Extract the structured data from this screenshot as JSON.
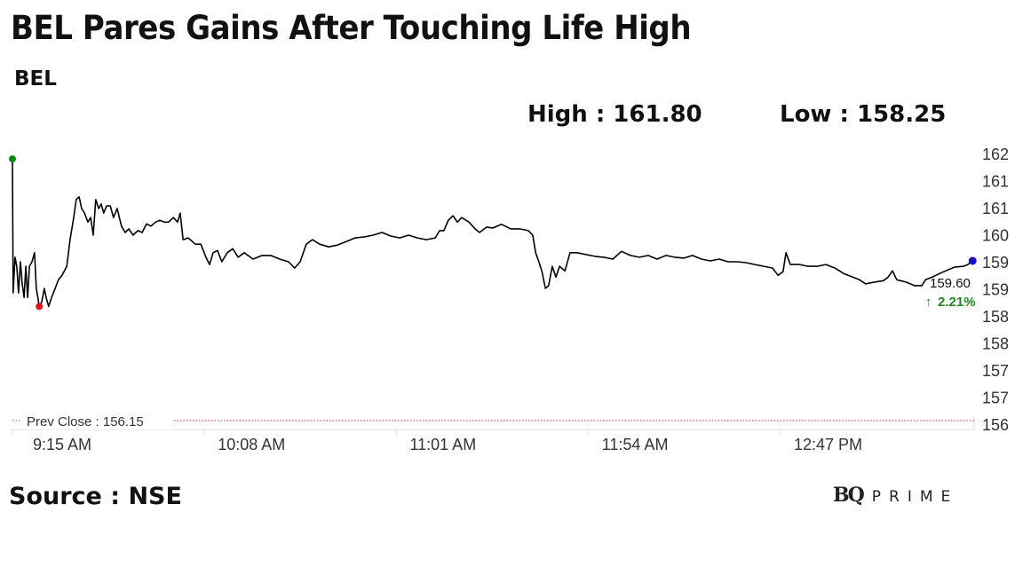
{
  "title": "BEL Pares Gains After Touching Life High",
  "ticker": "BEL",
  "high_label": "High : 161.80",
  "low_label": "Low : 158.25",
  "source": "Source : NSE",
  "logo": {
    "bq": "BQ",
    "prime": "PRIME"
  },
  "colors": {
    "line": "#000000",
    "high_dot": "#0a8a0a",
    "low_dot": "#ee1111",
    "last_dot": "#1111cc",
    "change": "#1a8a1a",
    "prev_close": "#cc3333"
  },
  "chart_data": {
    "type": "line",
    "title": "BEL",
    "xlabel": "",
    "ylabel": "",
    "x_unit": "minutes since 9:15 AM",
    "ylim": [
      156,
      162
    ],
    "y_tick_labels": [
      "162",
      "161",
      "161",
      "160",
      "159",
      "159",
      "158",
      "158",
      "157",
      "157",
      "156"
    ],
    "x_tick_labels": [
      "9:15 AM",
      "10:08 AM",
      "11:01 AM",
      "11:54 AM",
      "12:47 PM"
    ],
    "x_tick_minutes": [
      0,
      53,
      106,
      159,
      212
    ],
    "prev_close": {
      "label": "Prev Close : 156.15",
      "value": 156.15
    },
    "last": {
      "value_label": "159.60",
      "change_label": "2.21%",
      "change_icon": "arrow-up-icon"
    },
    "grid": false,
    "series": [
      {
        "name": "BEL",
        "points": [
          [
            0,
            161.88
          ],
          [
            0.2,
            158.91
          ],
          [
            0.7,
            159.7
          ],
          [
            1.2,
            159.5
          ],
          [
            1.7,
            158.91
          ],
          [
            2.2,
            159.6
          ],
          [
            2.7,
            159.11
          ],
          [
            3.2,
            158.81
          ],
          [
            3.7,
            159.5
          ],
          [
            4.2,
            158.81
          ],
          [
            4.7,
            159.5
          ],
          [
            5.4,
            159.6
          ],
          [
            6.1,
            159.8
          ],
          [
            6.6,
            159.01
          ],
          [
            7.4,
            158.61
          ],
          [
            8.1,
            158.71
          ],
          [
            8.8,
            159.01
          ],
          [
            9.3,
            158.81
          ],
          [
            10,
            158.61
          ],
          [
            10.8,
            158.81
          ],
          [
            11.8,
            159.01
          ],
          [
            12.7,
            159.2
          ],
          [
            13.7,
            159.3
          ],
          [
            15,
            159.5
          ],
          [
            15.9,
            160.09
          ],
          [
            16.9,
            160.58
          ],
          [
            17.6,
            160.98
          ],
          [
            18.4,
            161.04
          ],
          [
            19.1,
            160.78
          ],
          [
            19.9,
            160.68
          ],
          [
            20.8,
            160.48
          ],
          [
            21.6,
            160.58
          ],
          [
            22.3,
            160.19
          ],
          [
            23,
            160.98
          ],
          [
            23.8,
            160.78
          ],
          [
            24.5,
            160.88
          ],
          [
            25.2,
            160.68
          ],
          [
            26,
            160.84
          ],
          [
            27,
            160.84
          ],
          [
            27.9,
            160.58
          ],
          [
            28.9,
            160.78
          ],
          [
            30.1,
            160.39
          ],
          [
            31.1,
            160.25
          ],
          [
            32.1,
            160.33
          ],
          [
            33.3,
            160.19
          ],
          [
            34.6,
            160.29
          ],
          [
            35.8,
            160.25
          ],
          [
            37,
            160.44
          ],
          [
            38.2,
            160.39
          ],
          [
            39.5,
            160.48
          ],
          [
            40.7,
            160.52
          ],
          [
            41.9,
            160.48
          ],
          [
            43.1,
            160.48
          ],
          [
            44.4,
            160.58
          ],
          [
            45.6,
            160.48
          ],
          [
            46.3,
            160.68
          ],
          [
            47.1,
            160.09
          ],
          [
            48.5,
            160.13
          ],
          [
            50.5,
            159.99
          ],
          [
            52,
            159.99
          ],
          [
            53.4,
            159.7
          ],
          [
            54.4,
            159.54
          ],
          [
            55.4,
            159.8
          ],
          [
            56.6,
            159.85
          ],
          [
            57.8,
            159.6
          ],
          [
            59.3,
            159.8
          ],
          [
            60.8,
            159.89
          ],
          [
            62.3,
            159.7
          ],
          [
            64,
            159.8
          ],
          [
            66.4,
            159.66
          ],
          [
            68.9,
            159.74
          ],
          [
            71.3,
            159.74
          ],
          [
            73.8,
            159.66
          ],
          [
            76.2,
            159.6
          ],
          [
            77.9,
            159.46
          ],
          [
            79.4,
            159.6
          ],
          [
            81.1,
            159.99
          ],
          [
            82.8,
            160.09
          ],
          [
            84.8,
            159.99
          ],
          [
            87.3,
            159.93
          ],
          [
            89.7,
            159.97
          ],
          [
            92.2,
            160.05
          ],
          [
            94.6,
            160.13
          ],
          [
            97.1,
            160.15
          ],
          [
            99.5,
            160.19
          ],
          [
            102,
            160.25
          ],
          [
            104.4,
            160.17
          ],
          [
            106.9,
            160.13
          ],
          [
            109.3,
            160.19
          ],
          [
            111.8,
            160.13
          ],
          [
            114.2,
            160.09
          ],
          [
            116.7,
            160.13
          ],
          [
            117.9,
            160.29
          ],
          [
            119.1,
            160.29
          ],
          [
            120.3,
            160.52
          ],
          [
            121.6,
            160.62
          ],
          [
            122.8,
            160.48
          ],
          [
            124,
            160.58
          ],
          [
            126,
            160.48
          ],
          [
            127.7,
            160.33
          ],
          [
            128.9,
            160.25
          ],
          [
            130.9,
            160.37
          ],
          [
            132.6,
            160.35
          ],
          [
            135,
            160.43
          ],
          [
            137.5,
            160.33
          ],
          [
            140,
            160.33
          ],
          [
            142.4,
            160.29
          ],
          [
            143.6,
            160.19
          ],
          [
            144.4,
            159.8
          ],
          [
            145.3,
            159.6
          ],
          [
            146.1,
            159.4
          ],
          [
            147.1,
            159.01
          ],
          [
            148,
            159.07
          ],
          [
            149,
            159.5
          ],
          [
            150,
            159.26
          ],
          [
            151,
            159.5
          ],
          [
            152.5,
            159.4
          ],
          [
            153.9,
            159.8
          ],
          [
            155.9,
            159.8
          ],
          [
            158.3,
            159.76
          ],
          [
            160.8,
            159.72
          ],
          [
            163.2,
            159.7
          ],
          [
            165.7,
            159.66
          ],
          [
            168.1,
            159.83
          ],
          [
            170.6,
            159.74
          ],
          [
            173,
            159.7
          ],
          [
            175.5,
            159.74
          ],
          [
            177.9,
            159.66
          ],
          [
            180.4,
            159.74
          ],
          [
            182.8,
            159.7
          ],
          [
            185.3,
            159.68
          ],
          [
            187.7,
            159.74
          ],
          [
            190.2,
            159.66
          ],
          [
            192.6,
            159.62
          ],
          [
            195.1,
            159.66
          ],
          [
            197.5,
            159.6
          ],
          [
            200,
            159.6
          ],
          [
            202.5,
            159.58
          ],
          [
            204.9,
            159.54
          ],
          [
            207.4,
            159.5
          ],
          [
            209.8,
            159.46
          ],
          [
            211.3,
            159.3
          ],
          [
            212.7,
            159.38
          ],
          [
            213.5,
            159.8
          ],
          [
            214.7,
            159.54
          ],
          [
            217.2,
            159.54
          ],
          [
            219.6,
            159.5
          ],
          [
            222.1,
            159.5
          ],
          [
            224.5,
            159.54
          ],
          [
            227,
            159.46
          ],
          [
            229.4,
            159.34
          ],
          [
            231.9,
            159.26
          ],
          [
            233.8,
            159.2
          ],
          [
            235.5,
            159.11
          ],
          [
            238,
            159.15
          ],
          [
            240.4,
            159.18
          ],
          [
            241.7,
            159.26
          ],
          [
            242.9,
            159.4
          ],
          [
            244.1,
            159.2
          ],
          [
            246.6,
            159.15
          ],
          [
            249,
            159.07
          ],
          [
            251,
            159.07
          ],
          [
            252,
            159.2
          ],
          [
            253.9,
            159.26
          ],
          [
            255.9,
            159.34
          ],
          [
            257.6,
            159.4
          ],
          [
            260,
            159.48
          ],
          [
            262.5,
            159.5
          ],
          [
            263.7,
            159.54
          ],
          [
            265,
            159.62
          ]
        ]
      }
    ]
  }
}
